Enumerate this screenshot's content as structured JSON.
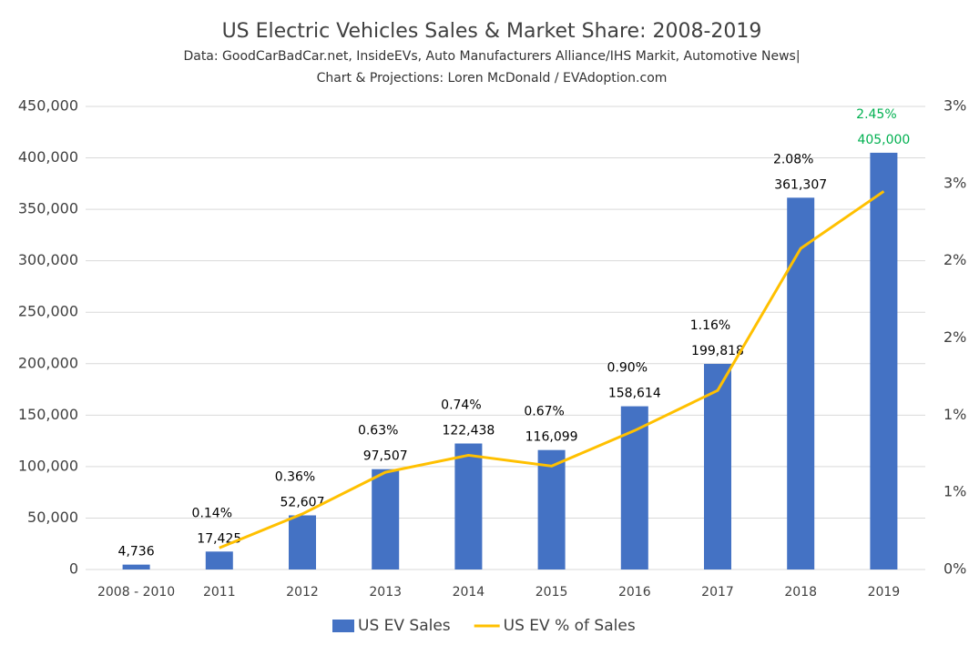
{
  "chart_data": {
    "type": "bar_line",
    "title": "US Electric Vehicles Sales & Market Share: 2008-2019",
    "subtitle": [
      "Data: GoodCarBadCar.net,  InsideEVs,  Auto Manufacturers Alliance/IHS Markit, Automotive News|",
      "Chart & Projections: Loren McDonald / EVAdoption.com"
    ],
    "categories": [
      "2008 - 2010",
      "2011",
      "2012",
      "2013",
      "2014",
      "2015",
      "2016",
      "2017",
      "2018",
      "2019"
    ],
    "series": [
      {
        "name": "US EV Sales",
        "type": "bar",
        "color": "#4472c4",
        "values": [
          4736,
          17425,
          52607,
          97507,
          122438,
          116099,
          158614,
          199818,
          361307,
          405000
        ],
        "value_labels": [
          "4,736",
          "17,425",
          "52,607",
          "97,507",
          "122,438",
          "116,099",
          "158,614",
          "199,818",
          "361,307",
          "405,000"
        ],
        "value_label_colors": [
          "#000000",
          "#000000",
          "#000000",
          "#000000",
          "#000000",
          "#000000",
          "#000000",
          "#000000",
          "#000000",
          "#00b050"
        ]
      },
      {
        "name": "US EV % of Sales",
        "type": "line",
        "axis": "y2",
        "color": "#ffc000",
        "values": [
          null,
          0.14,
          0.36,
          0.63,
          0.74,
          0.67,
          0.9,
          1.16,
          2.08,
          2.45
        ],
        "value_labels": [
          null,
          "0.14%",
          "0.36%",
          "0.63%",
          "0.74%",
          "0.67%",
          "0.90%",
          "1.16%",
          "2.08%",
          "2.45%"
        ],
        "value_label_colors": [
          null,
          "#000000",
          "#000000",
          "#000000",
          "#000000",
          "#000000",
          "#000000",
          "#000000",
          "#000000",
          "#00b050"
        ]
      }
    ],
    "ylim": [
      0,
      450000
    ],
    "yticks": [
      0,
      {
        "value": 50000,
        "label": "50,000"
      },
      {
        "value": 100000,
        "label": "100,000"
      },
      {
        "value": 150000,
        "label": "150,000"
      },
      {
        "value": 200000,
        "label": "200,000"
      },
      {
        "value": 250000,
        "label": "250,000"
      },
      {
        "value": 300000,
        "label": "300,000"
      },
      {
        "value": 350000,
        "label": "350,000"
      },
      {
        "value": 400000,
        "label": "400,000"
      },
      {
        "value": 450000,
        "label": "450,000"
      }
    ],
    "y2lim": [
      0,
      3
    ],
    "y2ticks": [
      {
        "value": 0,
        "label": "0%"
      },
      {
        "value": 0.5,
        "label": "1%"
      },
      {
        "value": 1,
        "label": "1%"
      },
      {
        "value": 1.5,
        "label": "2%"
      },
      {
        "value": 2,
        "label": "2%"
      },
      {
        "value": 2.5,
        "label": "3%"
      },
      {
        "value": 3,
        "label": "3%"
      }
    ],
    "grid": true,
    "legend": "bottom"
  }
}
